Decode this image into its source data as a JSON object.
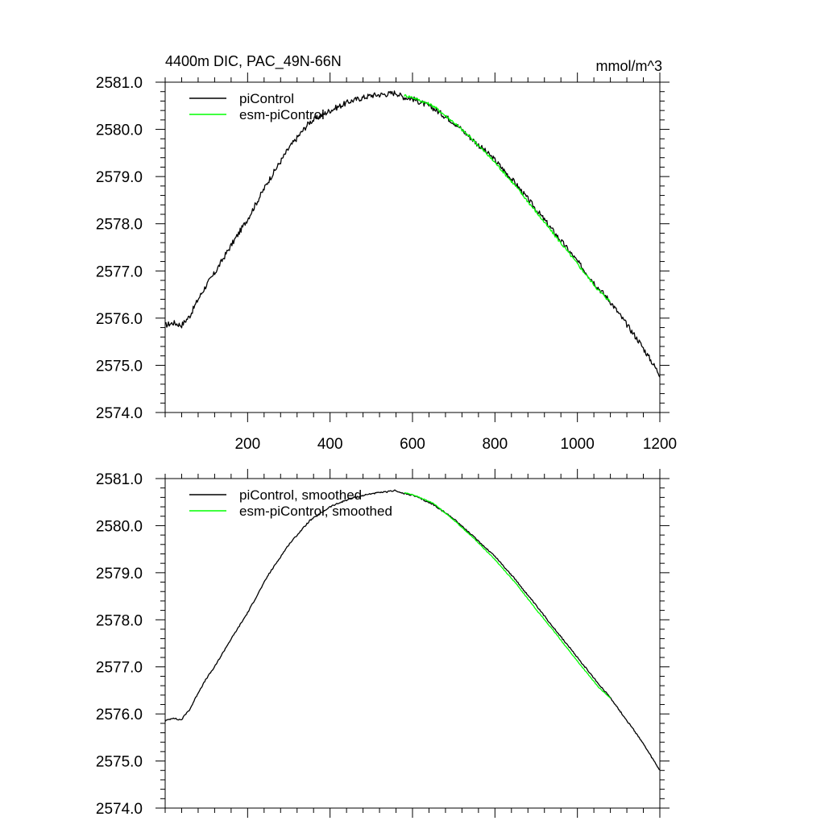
{
  "chart_data": [
    {
      "type": "line",
      "title": "4400m DIC, PAC_49N-66N",
      "units": "mmol/m^3",
      "xlim": [
        0,
        1200
      ],
      "ylim": [
        2574.0,
        2581.0
      ],
      "xticks": [
        200,
        400,
        600,
        800,
        1000,
        1200
      ],
      "xtick_labels": [
        "200",
        "400",
        "600",
        "800",
        "1000",
        "1200"
      ],
      "yticks": [
        2574,
        2575,
        2576,
        2577,
        2578,
        2579,
        2580,
        2581
      ],
      "ytick_labels": [
        "2574.0",
        "2575.0",
        "2576.0",
        "2577.0",
        "2578.0",
        "2579.0",
        "2580.0",
        "2581.0"
      ],
      "show_xtick_labels": true,
      "legend": [
        "piControl",
        "esm-piControl"
      ],
      "series": [
        {
          "name": "piControl",
          "color": "#000000",
          "noise": 0.06,
          "x": [
            0,
            20,
            40,
            50,
            60,
            80,
            100,
            120,
            150,
            200,
            250,
            300,
            350,
            400,
            450,
            500,
            540,
            560,
            570,
            580,
            600,
            650,
            700,
            750,
            800,
            850,
            900,
            950,
            1000,
            1050,
            1080,
            1100,
            1150,
            1200
          ],
          "y": [
            2575.85,
            2575.9,
            2575.85,
            2575.95,
            2576.05,
            2576.4,
            2576.7,
            2576.95,
            2577.4,
            2578.1,
            2578.9,
            2579.6,
            2580.15,
            2580.4,
            2580.6,
            2580.72,
            2580.75,
            2580.78,
            2580.72,
            2580.68,
            2580.65,
            2580.45,
            2580.15,
            2579.75,
            2579.35,
            2578.85,
            2578.3,
            2577.75,
            2577.2,
            2576.65,
            2576.35,
            2576.1,
            2575.5,
            2574.8
          ]
        },
        {
          "name": "esm-piControl",
          "color": "#00ff00",
          "noise": 0.03,
          "x": [
            580,
            600,
            650,
            700,
            750,
            800,
            850,
            900,
            950,
            1000,
            1050,
            1080
          ],
          "y": [
            2580.72,
            2580.68,
            2580.5,
            2580.15,
            2579.75,
            2579.3,
            2578.8,
            2578.25,
            2577.7,
            2577.15,
            2576.6,
            2576.35
          ]
        }
      ]
    },
    {
      "type": "line",
      "title": "",
      "units": "",
      "xlim": [
        0,
        1200
      ],
      "ylim": [
        2574.0,
        2581.0
      ],
      "xticks": [
        200,
        400,
        600,
        800,
        1000,
        1200
      ],
      "xtick_labels": [],
      "yticks": [
        2574,
        2575,
        2576,
        2577,
        2578,
        2579,
        2580,
        2581
      ],
      "ytick_labels": [
        "2574.0",
        "2575.0",
        "2576.0",
        "2577.0",
        "2578.0",
        "2579.0",
        "2580.0",
        "2581.0"
      ],
      "show_xtick_labels": false,
      "legend": [
        "piControl, smoothed",
        "esm-piControl, smoothed"
      ],
      "series": [
        {
          "name": "piControl, smoothed",
          "color": "#000000",
          "noise": 0.015,
          "x": [
            0,
            20,
            30,
            40,
            50,
            60,
            80,
            100,
            120,
            150,
            200,
            250,
            300,
            350,
            400,
            450,
            500,
            540,
            560,
            570,
            580,
            600,
            650,
            700,
            750,
            800,
            850,
            900,
            950,
            1000,
            1050,
            1080,
            1100,
            1150,
            1200
          ],
          "y": [
            2575.85,
            2575.92,
            2575.88,
            2575.88,
            2576.0,
            2576.1,
            2576.45,
            2576.75,
            2577.0,
            2577.45,
            2578.15,
            2578.95,
            2579.6,
            2580.1,
            2580.4,
            2580.58,
            2580.68,
            2580.72,
            2580.75,
            2580.7,
            2580.68,
            2580.65,
            2580.45,
            2580.15,
            2579.75,
            2579.35,
            2578.85,
            2578.3,
            2577.75,
            2577.2,
            2576.65,
            2576.35,
            2576.1,
            2575.5,
            2574.8
          ]
        },
        {
          "name": "esm-piControl, smoothed",
          "color": "#00ff00",
          "noise": 0.008,
          "x": [
            580,
            600,
            650,
            700,
            750,
            800,
            850,
            900,
            950,
            1000,
            1050,
            1080
          ],
          "y": [
            2580.7,
            2580.66,
            2580.48,
            2580.12,
            2579.72,
            2579.28,
            2578.78,
            2578.22,
            2577.68,
            2577.12,
            2576.58,
            2576.33
          ]
        }
      ]
    }
  ]
}
